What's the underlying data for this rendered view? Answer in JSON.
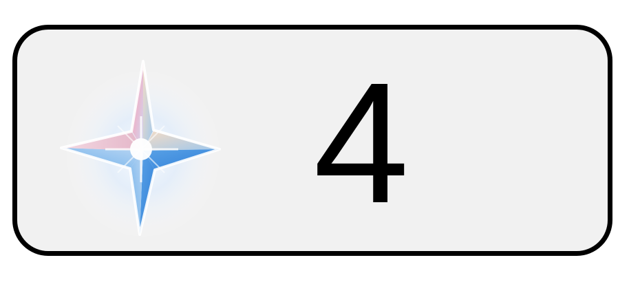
{
  "counter": {
    "icon": "primogem-star-icon",
    "value": "4"
  },
  "colors": {
    "card_background": "#f1f1f1",
    "card_border": "#000000",
    "text": "#000000"
  }
}
